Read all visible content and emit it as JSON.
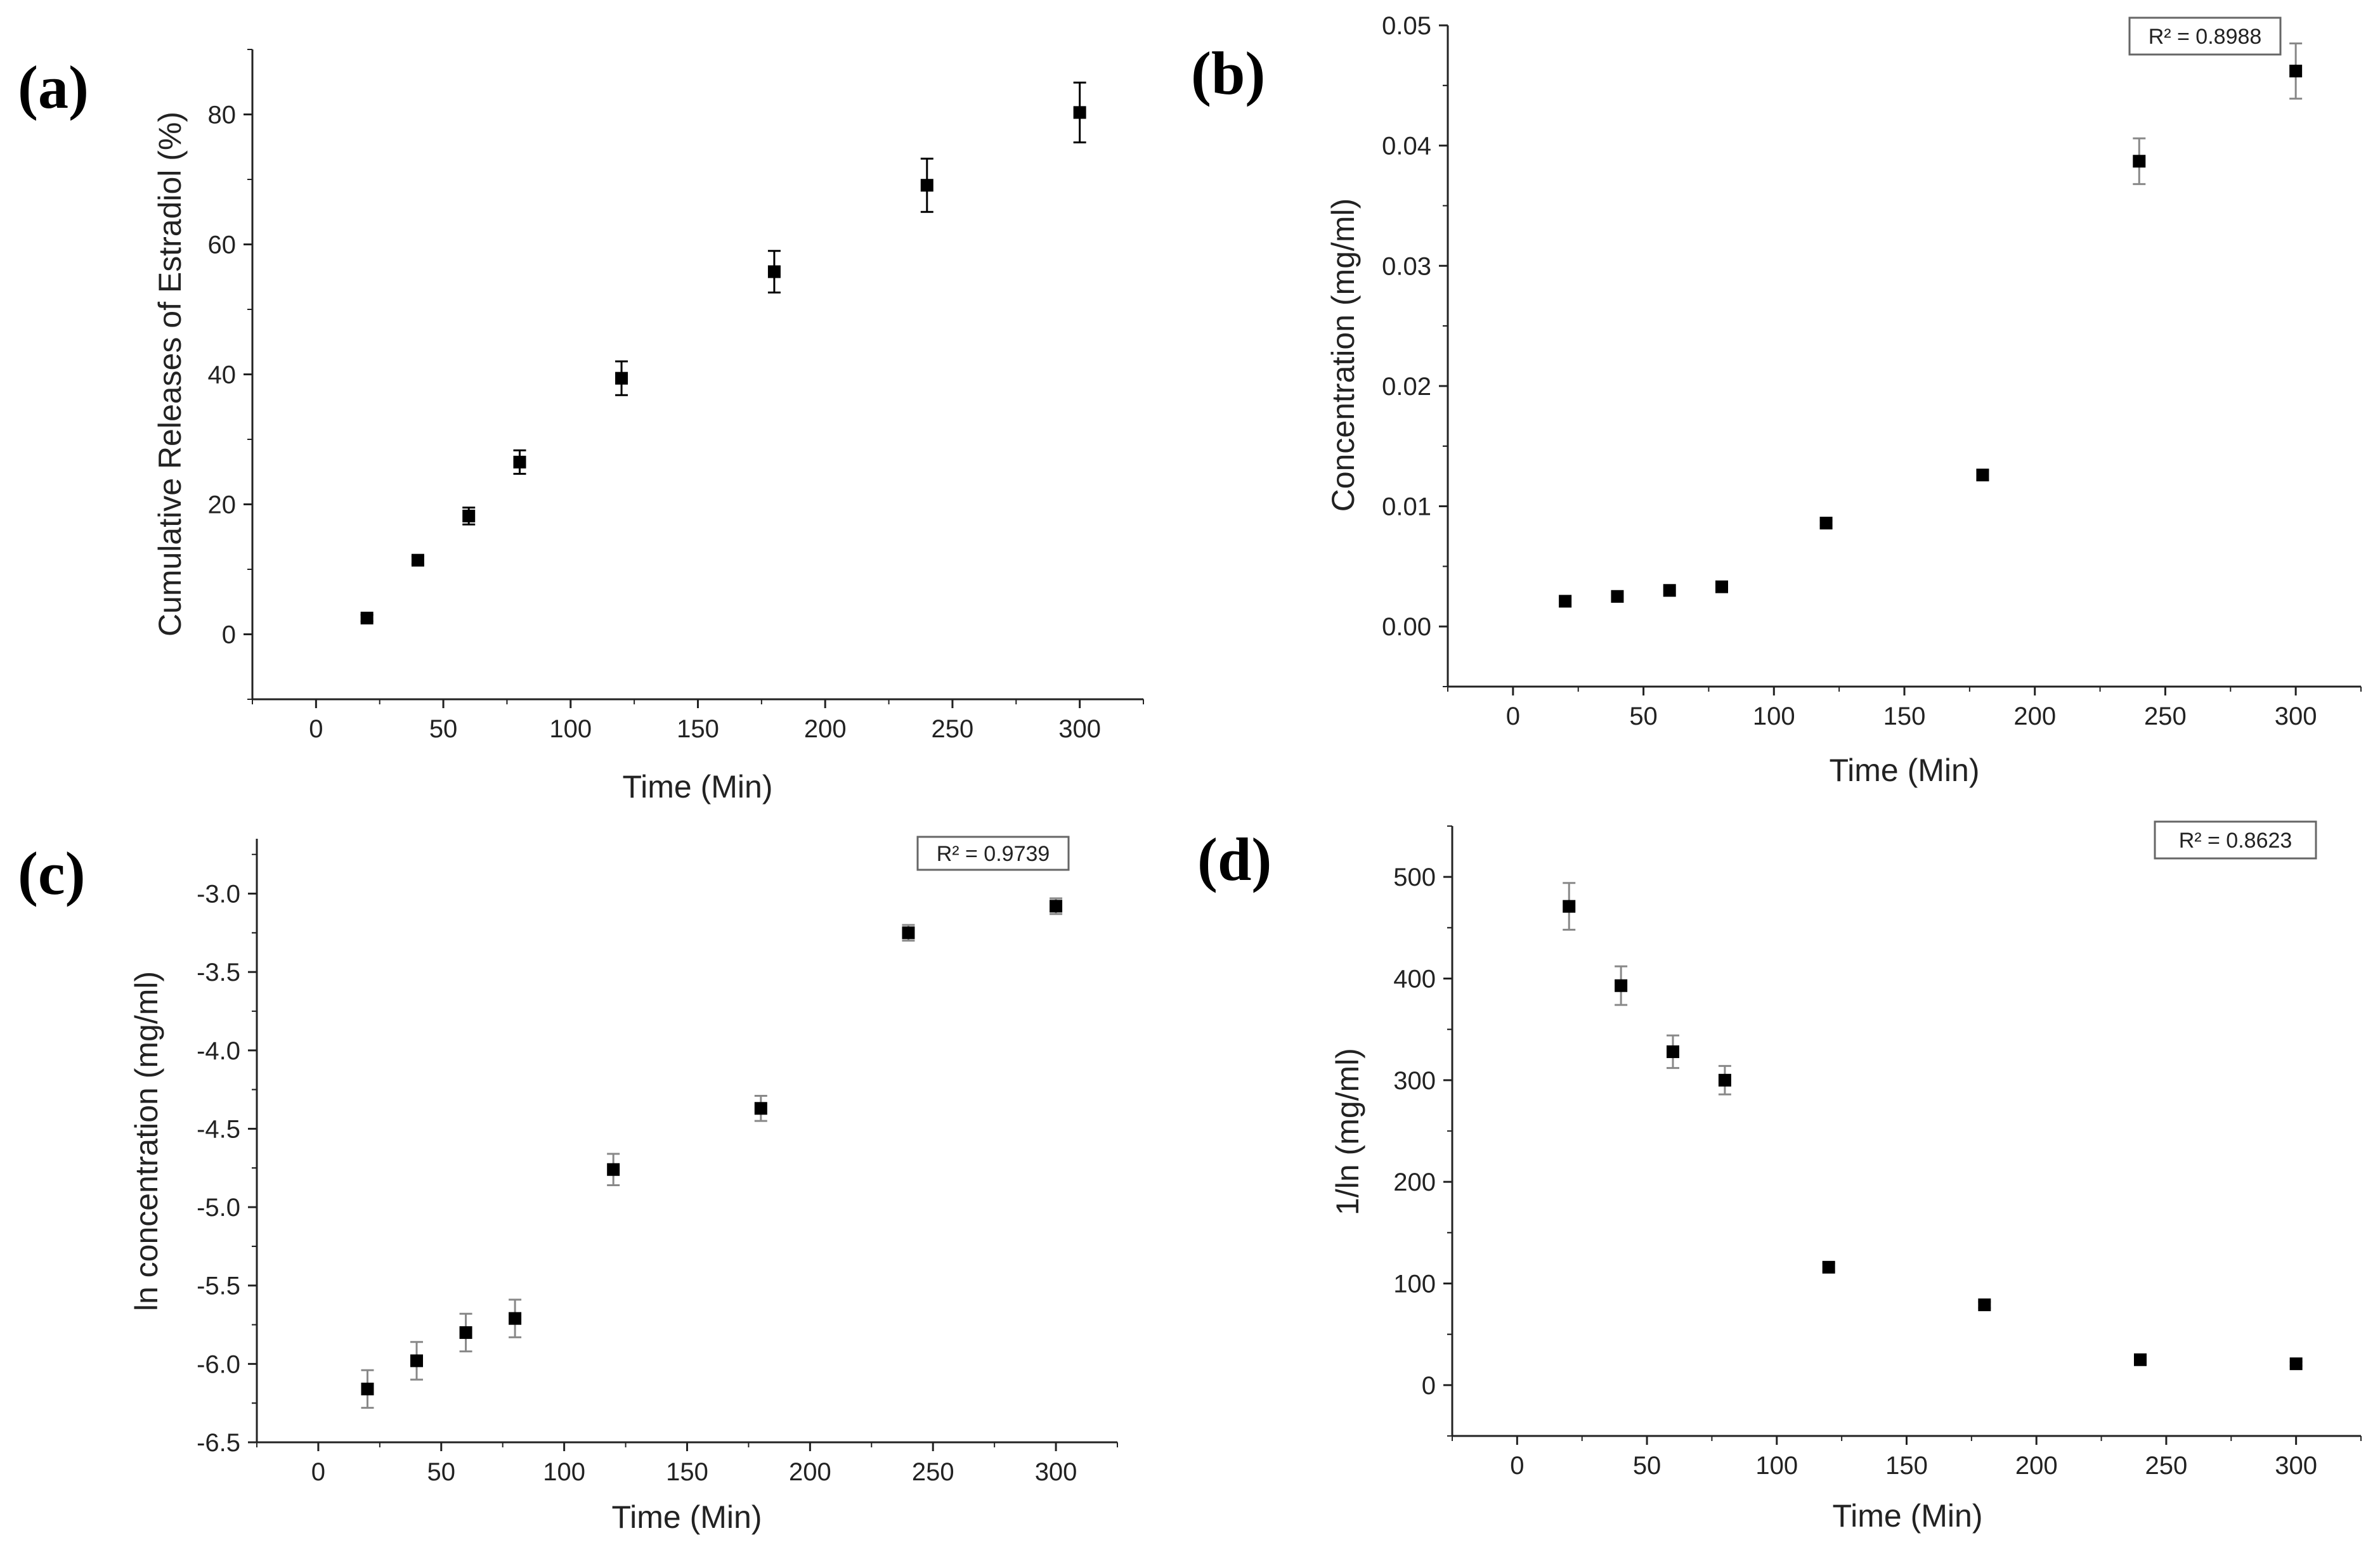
{
  "chart_data": [
    {
      "panel": "(a)",
      "type": "scatter",
      "xlabel": "Time (Min)",
      "ylabel": "Cumulative Releases of Estradiol (%)",
      "xlim": [
        -25,
        325
      ],
      "ylim": [
        -10,
        90
      ],
      "xticks": [
        0,
        50,
        100,
        150,
        200,
        250,
        300
      ],
      "yticks": [
        0,
        20,
        40,
        60,
        80
      ],
      "x": [
        20,
        40,
        60,
        80,
        120,
        180,
        240,
        300
      ],
      "y": [
        2.5,
        11.4,
        18.2,
        26.5,
        39.4,
        55.8,
        69.1,
        80.3
      ],
      "err": [
        0.5,
        0.6,
        1.3,
        1.8,
        2.6,
        3.2,
        4.1,
        4.6
      ],
      "r2": null
    },
    {
      "panel": "(b)",
      "type": "scatter",
      "xlabel": "Time (Min)",
      "ylabel": "Concentration (mg/ml)",
      "xlim": [
        -25,
        325
      ],
      "ylim": [
        -0.005,
        0.05
      ],
      "xticks": [
        0,
        50,
        100,
        150,
        200,
        250,
        300
      ],
      "yticks": [
        0.0,
        0.01,
        0.02,
        0.03,
        0.04,
        0.05
      ],
      "yticklabels": [
        "0.00",
        "0.01",
        "0.02",
        "0.03",
        "0.04",
        "0.05"
      ],
      "x": [
        20,
        40,
        60,
        80,
        120,
        180,
        240,
        300
      ],
      "y": [
        0.0021,
        0.0025,
        0.003,
        0.0033,
        0.0086,
        0.0126,
        0.0387,
        0.0462
      ],
      "err": [
        0.0001,
        0.0001,
        0.0001,
        0.0001,
        0.0002,
        0.0004,
        0.0019,
        0.0023
      ],
      "r2": "R² = 0.8988"
    },
    {
      "panel": "(c)",
      "type": "scatter",
      "xlabel": "Time (Min)",
      "ylabel": "ln concentration (mg/ml)",
      "xlim": [
        -25,
        325
      ],
      "ylim": [
        -6.5,
        -2.65
      ],
      "xticks": [
        0,
        50,
        100,
        150,
        200,
        250,
        300
      ],
      "yticks": [
        -6.5,
        -6.0,
        -5.5,
        -5.0,
        -4.5,
        -4.0,
        -3.5,
        -3.0
      ],
      "yticklabels": [
        "-6.5",
        "-6.0",
        "-5.5",
        "-5.0",
        "-4.5",
        "-4.0",
        "-3.5",
        "-3.0"
      ],
      "x": [
        20,
        40,
        60,
        80,
        120,
        180,
        240,
        300
      ],
      "y": [
        -6.16,
        -5.98,
        -5.8,
        -5.71,
        -4.76,
        -4.37,
        -3.25,
        -3.08
      ],
      "err": [
        0.12,
        0.12,
        0.12,
        0.12,
        0.1,
        0.08,
        0.05,
        0.05
      ],
      "r2": "R² = 0.9739"
    },
    {
      "panel": "(d)",
      "type": "scatter",
      "xlabel": "Time (Min)",
      "ylabel": "1/ln (mg/ml)",
      "xlim": [
        -25,
        325
      ],
      "ylim": [
        -50,
        550
      ],
      "xticks": [
        0,
        50,
        100,
        150,
        200,
        250,
        300
      ],
      "yticks": [
        0,
        100,
        200,
        300,
        400,
        500
      ],
      "x": [
        20,
        40,
        60,
        80,
        120,
        180,
        240,
        300
      ],
      "y": [
        471,
        393,
        328,
        300,
        116,
        79,
        25,
        21
      ],
      "err": [
        23,
        19,
        16,
        14,
        4,
        3,
        2,
        2
      ],
      "r2": "R² = 0.8623"
    }
  ]
}
